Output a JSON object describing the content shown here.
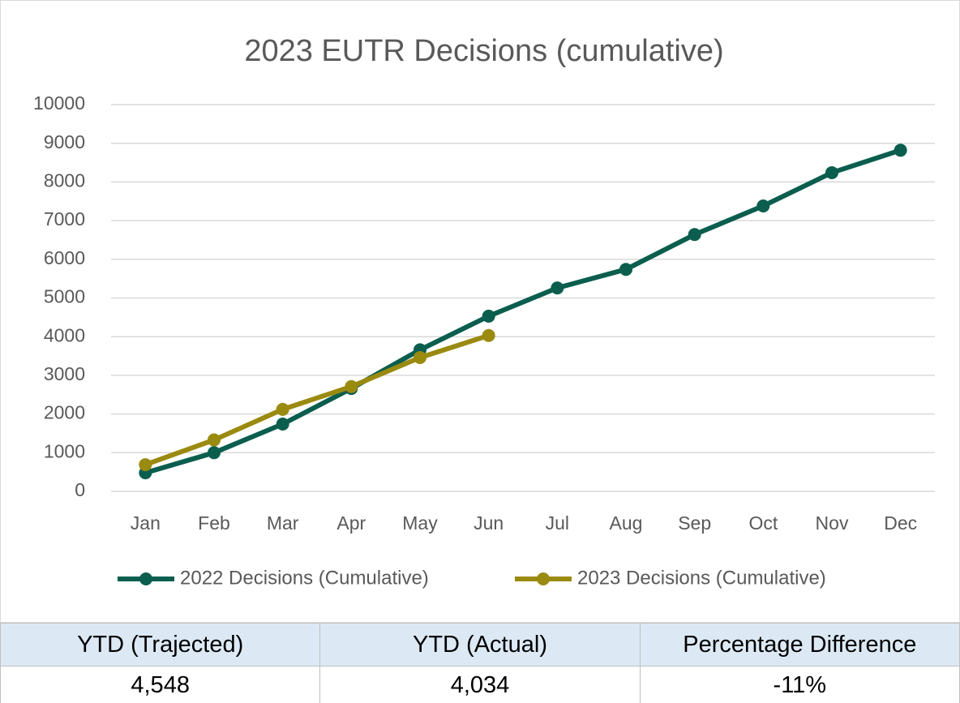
{
  "chart_data": {
    "type": "line",
    "title": "2023 EUTR Decisions (cumulative)",
    "categories": [
      "Jan",
      "Feb",
      "Mar",
      "Apr",
      "May",
      "Jun",
      "Jul",
      "Aug",
      "Sep",
      "Oct",
      "Nov",
      "Dec"
    ],
    "series": [
      {
        "name": "2022 Decisions (Cumulative)",
        "color": "#0b5e4e",
        "values": [
          480,
          1000,
          1740,
          2660,
          3660,
          4530,
          5260,
          5740,
          6640,
          7380,
          8240,
          8820
        ]
      },
      {
        "name": "2023 Decisions (Cumulative)",
        "color": "#9a8a10",
        "values": [
          690,
          1330,
          2120,
          2710,
          3460,
          4030,
          null,
          null,
          null,
          null,
          null,
          null
        ]
      }
    ],
    "ylim": [
      0,
      10000
    ],
    "yticks": [
      0,
      1000,
      2000,
      3000,
      4000,
      5000,
      6000,
      7000,
      8000,
      9000,
      10000
    ],
    "grid": true,
    "legend": "bottom"
  },
  "table": {
    "header": [
      "YTD (Trajected)",
      "YTD (Actual)",
      "Percentage Difference"
    ],
    "rows": [
      [
        "4,548",
        "4,034",
        "-11%"
      ]
    ]
  }
}
